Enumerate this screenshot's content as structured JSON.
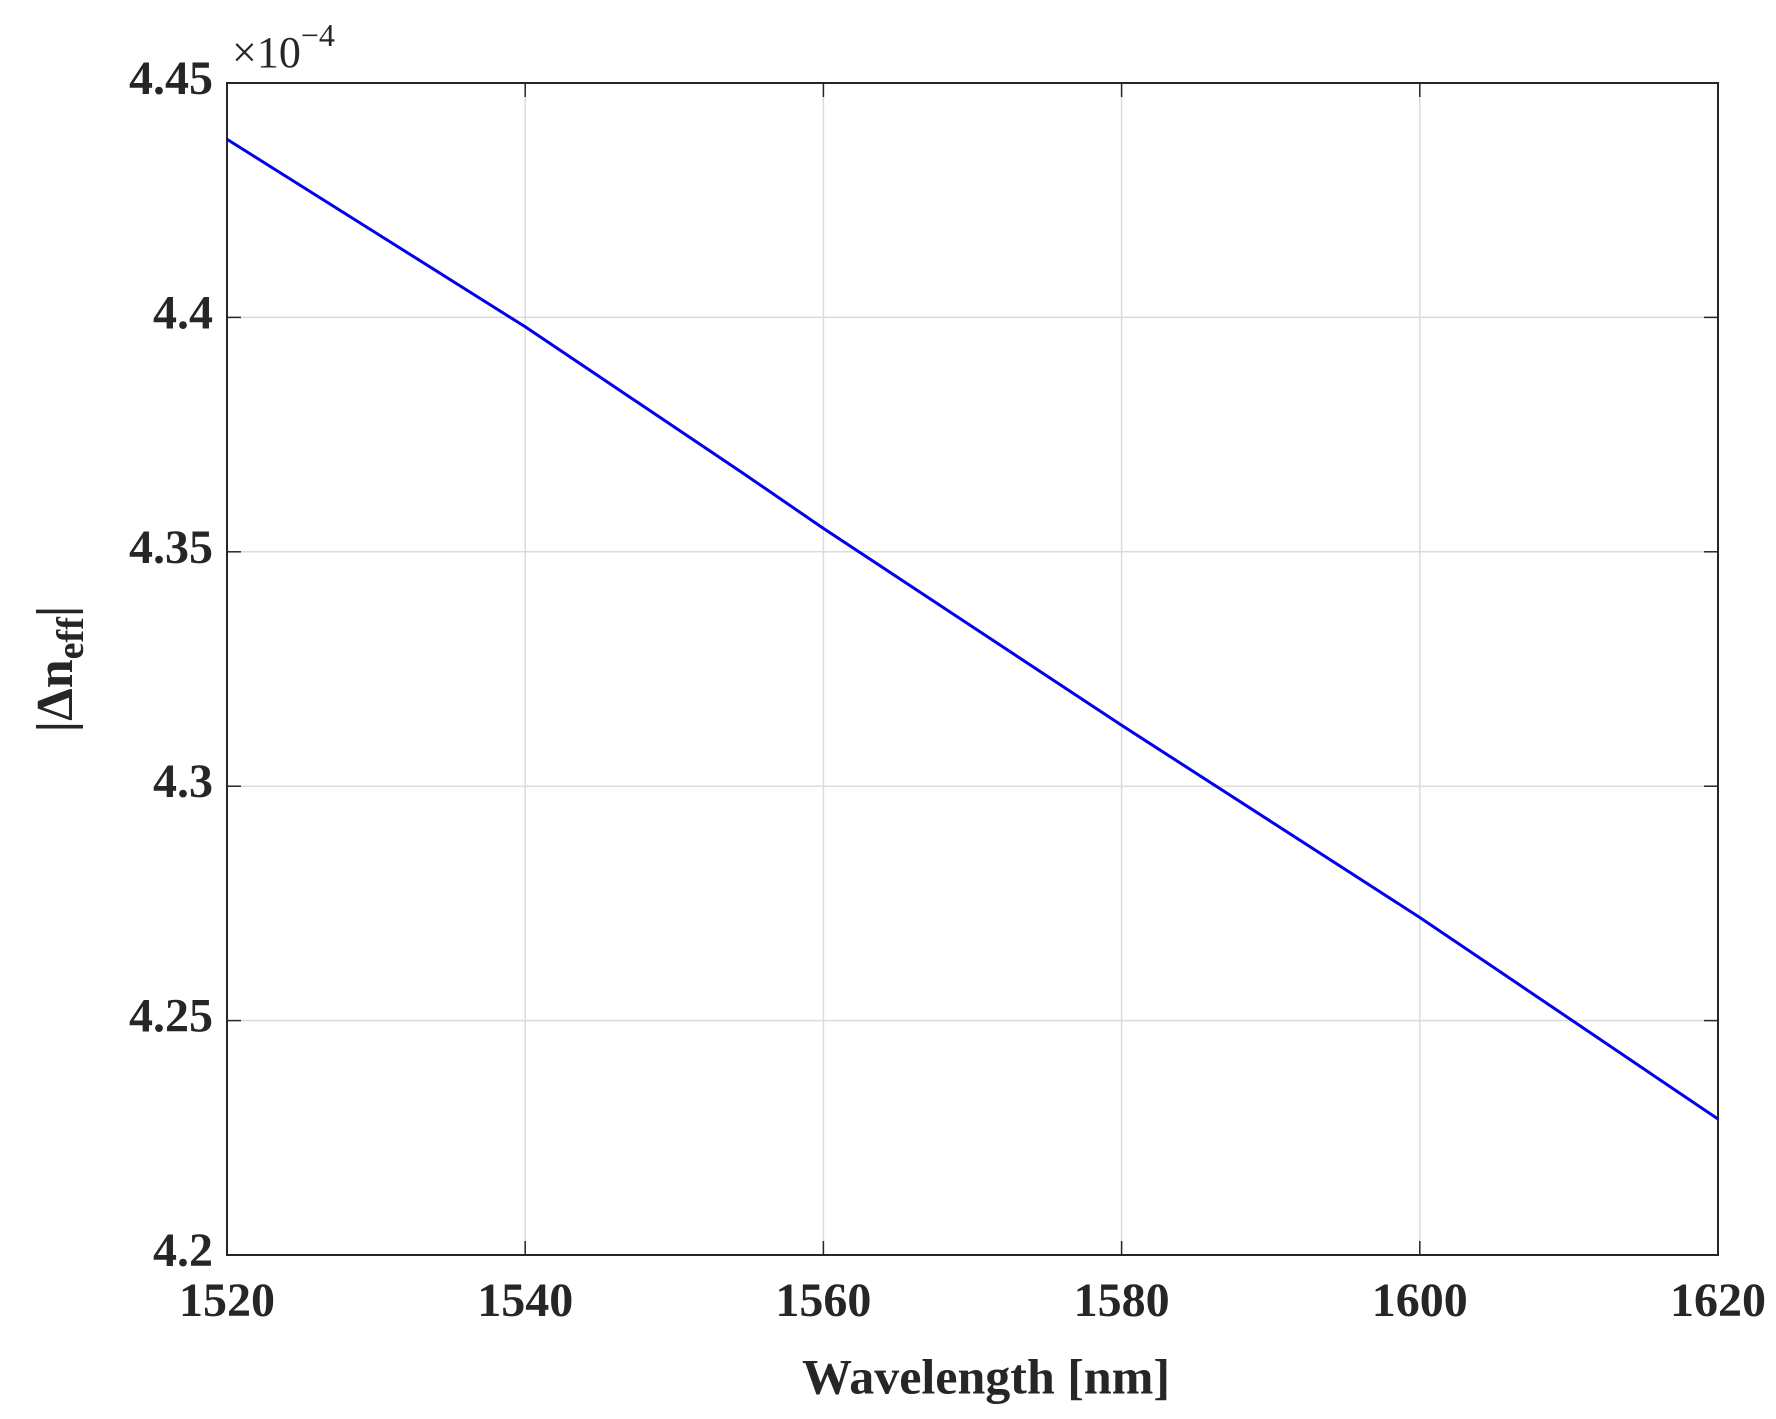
{
  "chart_data": {
    "type": "line",
    "x": [
      1520,
      1540,
      1554.5,
      1560,
      1580,
      1600,
      1620
    ],
    "series": [
      {
        "color": "#0000ee",
        "values": [
          4.438,
          4.398,
          4.367,
          4.355,
          4.313,
          4.272,
          4.229
        ]
      }
    ],
    "xlabel": "Wavelength [nm]",
    "ylabel_parts": [
      "|Δn",
      "eff",
      "|"
    ],
    "y_multiplier": "×10",
    "y_multiplier_exponent": "−4",
    "xlim": [
      1520,
      1620
    ],
    "xticks": [
      1520,
      1540,
      1560,
      1580,
      1600,
      1620
    ],
    "ylim": [
      4.2,
      4.45
    ],
    "yticks": [
      4.2,
      4.25,
      4.3,
      4.35,
      4.4,
      4.45
    ],
    "grid": true
  }
}
